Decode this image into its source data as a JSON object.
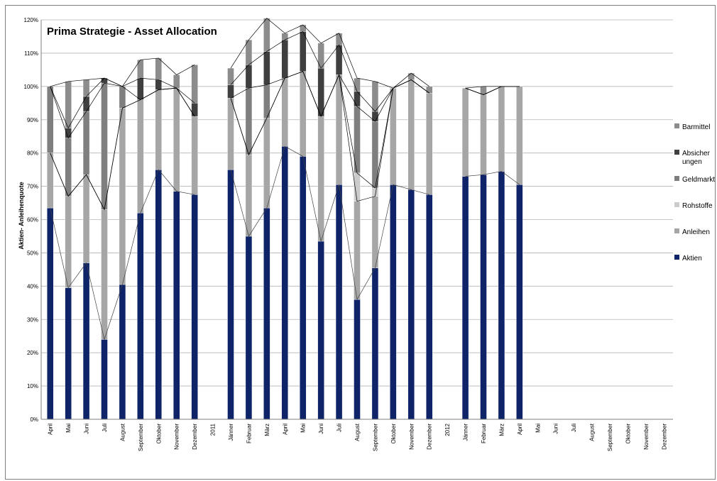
{
  "chart_data": {
    "type": "bar",
    "stacked": true,
    "title": "Prima Strategie - Asset Allocation",
    "ylabel": "Aktien- Anleihenquote",
    "ylim": [
      0,
      120
    ],
    "ytick_step": 10,
    "ytick_suffix": "%",
    "grid": true,
    "legend_position": "right",
    "categories": [
      "April",
      "Mai",
      "Juni",
      "Juli",
      "August",
      "September",
      "Oktober",
      "November",
      "Dezember",
      "2011",
      "Jänner",
      "Februar",
      "März",
      "April",
      "Mai",
      "Juni",
      "Juli",
      "August",
      "September",
      "Oktober",
      "November",
      "Dezember",
      "2012",
      "Jänner",
      "Februar",
      "März",
      "April",
      "Mai",
      "Juni",
      "Juli",
      "August",
      "September",
      "Oktober",
      "November",
      "Dezember"
    ],
    "series": [
      {
        "name": "Aktien",
        "color": "#0f2468",
        "values": [
          63.5,
          39.5,
          47,
          24,
          40.5,
          62,
          75,
          68.5,
          67.5,
          null,
          75,
          55,
          63.5,
          82,
          79,
          53.5,
          70.5,
          36,
          45.5,
          70.5,
          69,
          67.5,
          null,
          73,
          73.5,
          74.5,
          70.5,
          null,
          null,
          null,
          null,
          null,
          null,
          null,
          null
        ]
      },
      {
        "name": "Anleihen",
        "color": "#a6a6a6",
        "values": [
          16.5,
          27.5,
          26.5,
          39,
          53,
          34,
          24,
          31,
          23.5,
          null,
          21.5,
          24.5,
          27,
          20.5,
          25.5,
          37.5,
          33,
          29.5,
          21.5,
          29,
          33,
          30.5,
          null,
          26.5,
          24,
          25.5,
          29.5,
          null,
          null,
          null,
          null,
          null,
          null,
          null,
          null
        ]
      },
      {
        "name": "Rohstoffe",
        "color": "#cbcbcb",
        "values": [
          0,
          0,
          0,
          0,
          0,
          0,
          0,
          0,
          0,
          null,
          0,
          0,
          0,
          0,
          0,
          0,
          0,
          8.5,
          2.5,
          0,
          0,
          0,
          null,
          0,
          0,
          0,
          0,
          null,
          null,
          null,
          null,
          null,
          null,
          null,
          null
        ]
      },
      {
        "name": "Geldmarkt",
        "color": "#7f7f7f",
        "values": [
          20,
          17.5,
          19,
          38,
          6.5,
          0,
          0,
          0,
          0,
          null,
          0,
          20,
          10,
          0,
          0,
          0,
          0,
          20,
          20,
          0,
          0,
          0,
          null,
          0,
          0,
          0,
          0,
          null,
          null,
          null,
          null,
          null,
          null,
          null,
          null
        ]
      },
      {
        "name": "Absicher ungen",
        "color": "#3f3f3f",
        "values": [
          0,
          3,
          4.5,
          1.5,
          0,
          6.5,
          3,
          0,
          4,
          null,
          4,
          7,
          10,
          11.5,
          12,
          14.5,
          9,
          4.5,
          3,
          0,
          0,
          0,
          null,
          0,
          0,
          0,
          0,
          null,
          null,
          null,
          null,
          null,
          null,
          null,
          null
        ]
      },
      {
        "name": "Barmittel",
        "color": "#8c8c8c",
        "values": [
          0,
          14,
          5,
          0,
          0,
          5.5,
          6.5,
          4,
          11.5,
          null,
          5,
          7.5,
          10,
          2,
          2,
          7.5,
          3.5,
          4,
          9,
          0,
          2,
          2,
          null,
          0,
          2.5,
          0,
          0,
          null,
          null,
          null,
          null,
          null,
          null,
          null,
          null
        ]
      }
    ]
  }
}
